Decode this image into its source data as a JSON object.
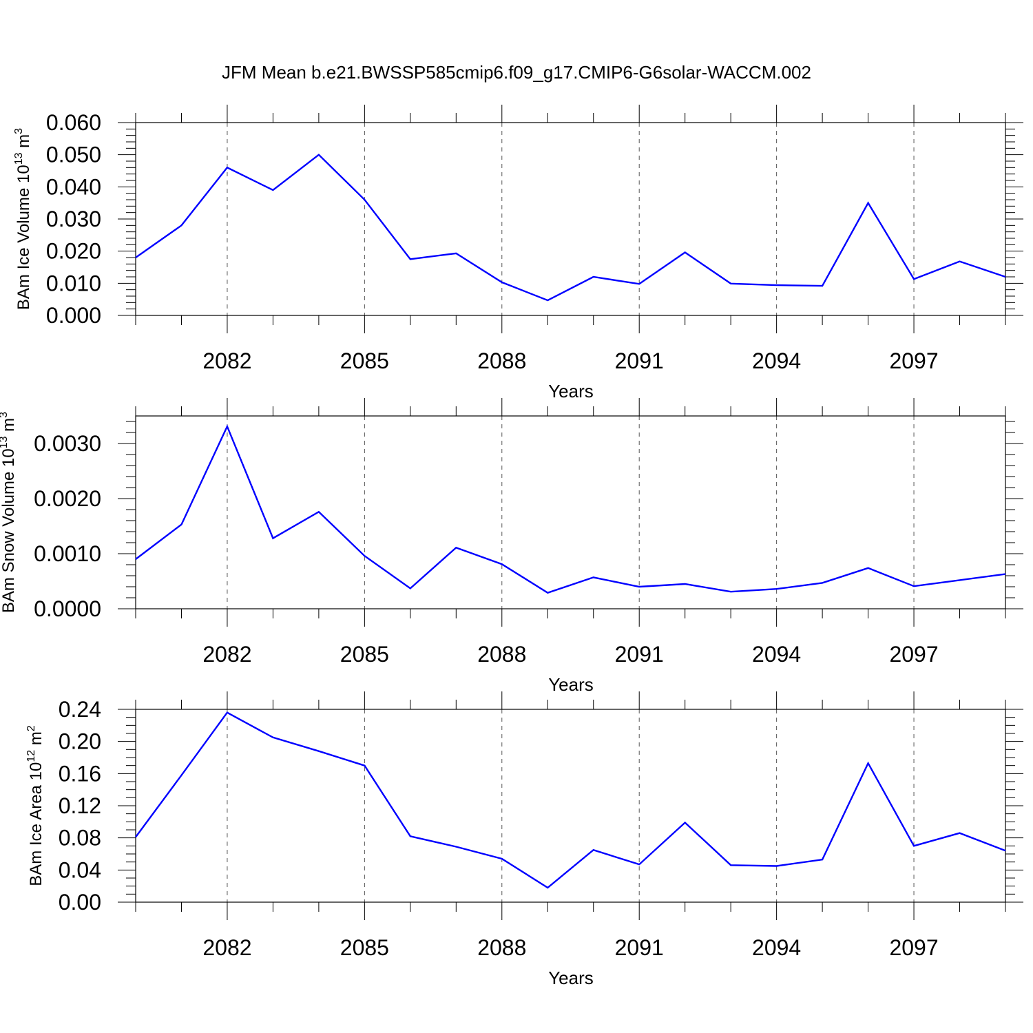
{
  "title": "JFM Mean b.e21.BWSSP585cmip6.f09_g17.CMIP6-G6solar-WACCM.002",
  "line_color": "#0000ff",
  "chart_data": [
    {
      "type": "line",
      "xlabel": "Years",
      "ylabel": {
        "base": "BAm Ice Volume 10",
        "exp": "13",
        "unit": " m",
        "unit_exp": "3"
      },
      "x": [
        2080,
        2081,
        2082,
        2083,
        2084,
        2085,
        2086,
        2087,
        2088,
        2089,
        2090,
        2091,
        2092,
        2093,
        2094,
        2095,
        2096,
        2097,
        2098,
        2099
      ],
      "values": [
        0.018,
        0.028,
        0.046,
        0.039,
        0.05,
        0.036,
        0.0175,
        0.0193,
        0.0103,
        0.0047,
        0.012,
        0.0098,
        0.0196,
        0.0099,
        0.0094,
        0.0092,
        0.035,
        0.0113,
        0.0168,
        0.012
      ],
      "xlim": [
        2080,
        2099
      ],
      "ylim": [
        0.0,
        0.06
      ],
      "xticks": [
        "2082",
        "2085",
        "2088",
        "2091",
        "2094",
        "2097"
      ],
      "yticks": [
        "0.000",
        "0.010",
        "0.020",
        "0.030",
        "0.040",
        "0.050",
        "0.060"
      ],
      "grid": "vertical dashed at labeled years"
    },
    {
      "type": "line",
      "xlabel": "Years",
      "ylabel": {
        "base": "BAm Snow Volume 10",
        "exp": "13",
        "unit": " m",
        "unit_exp": "3"
      },
      "x": [
        2080,
        2081,
        2082,
        2083,
        2084,
        2085,
        2086,
        2087,
        2088,
        2089,
        2090,
        2091,
        2092,
        2093,
        2094,
        2095,
        2096,
        2097,
        2098,
        2099
      ],
      "values": [
        0.0009,
        0.00153,
        0.00331,
        0.00128,
        0.00176,
        0.00096,
        0.00037,
        0.00111,
        0.00081,
        0.00029,
        0.00057,
        0.0004,
        0.00045,
        0.00031,
        0.00036,
        0.00047,
        0.00074,
        0.00041,
        0.00052,
        0.00063
      ],
      "xlim": [
        2080,
        2099
      ],
      "ylim": [
        0.0,
        0.0035
      ],
      "xticks": [
        "2082",
        "2085",
        "2088",
        "2091",
        "2094",
        "2097"
      ],
      "yticks": [
        "0.0000",
        "0.0010",
        "0.0020",
        "0.0030"
      ],
      "grid": "vertical dashed at labeled years"
    },
    {
      "type": "line",
      "xlabel": "Years",
      "ylabel": {
        "base": "BAm Ice Area 10",
        "exp": "12",
        "unit": " m",
        "unit_exp": "2"
      },
      "x": [
        2080,
        2081,
        2082,
        2083,
        2084,
        2085,
        2086,
        2087,
        2088,
        2089,
        2090,
        2091,
        2092,
        2093,
        2094,
        2095,
        2096,
        2097,
        2098,
        2099
      ],
      "values": [
        0.081,
        0.158,
        0.236,
        0.205,
        0.188,
        0.17,
        0.082,
        0.069,
        0.054,
        0.018,
        0.065,
        0.047,
        0.099,
        0.046,
        0.045,
        0.053,
        0.173,
        0.07,
        0.086,
        0.064
      ],
      "xlim": [
        2080,
        2099
      ],
      "ylim": [
        0.0,
        0.24
      ],
      "xticks": [
        "2082",
        "2085",
        "2088",
        "2091",
        "2094",
        "2097"
      ],
      "yticks": [
        "0.00",
        "0.04",
        "0.08",
        "0.12",
        "0.16",
        "0.20",
        "0.24"
      ],
      "grid": "vertical dashed at labeled years"
    }
  ]
}
